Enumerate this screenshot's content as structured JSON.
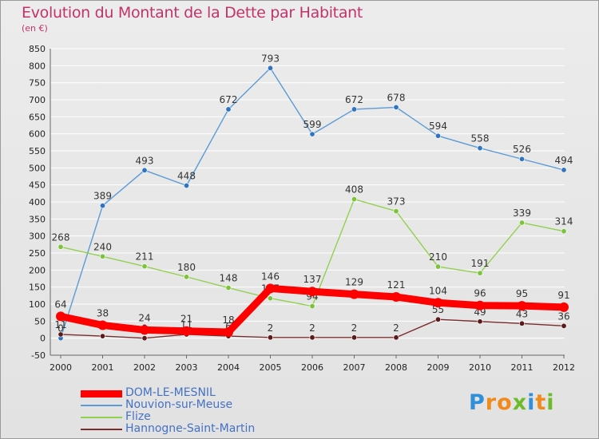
{
  "title": "Evolution du Montant de la Dette par Habitant",
  "unit": "(en €)",
  "brand": {
    "text": "Proxiti",
    "letters": [
      {
        "ch": "P",
        "color": "#2f8fd8"
      },
      {
        "ch": "r",
        "color": "#f08a1c"
      },
      {
        "ch": "o",
        "color": "#f08a1c"
      },
      {
        "ch": "x",
        "color": "#6cbb2a"
      },
      {
        "ch": "i",
        "color": "#2f8fd8"
      },
      {
        "ch": "t",
        "color": "#f08a1c"
      },
      {
        "ch": "i",
        "color": "#6cbb2a"
      }
    ]
  },
  "chart_data": {
    "type": "line",
    "title": "Evolution du Montant de la Dette par Habitant",
    "xlabel": "",
    "ylabel": "(en €)",
    "ylim": [
      -50,
      850
    ],
    "yticks": [
      -50,
      0,
      50,
      100,
      150,
      200,
      250,
      300,
      350,
      400,
      450,
      500,
      550,
      600,
      650,
      700,
      750,
      800,
      850
    ],
    "x": [
      "2000",
      "2001",
      "2002",
      "2003",
      "2004",
      "2005",
      "2006",
      "2007",
      "2008",
      "2009",
      "2010",
      "2011",
      "2012"
    ],
    "grid": "horizontal",
    "legend": "bottom-left",
    "series": [
      {
        "name": "Nouvion-sur-Meuse",
        "color": "#5b9bd5",
        "marker": "#2f74c0",
        "values": [
          0,
          389,
          493,
          448,
          672,
          793,
          599,
          672,
          678,
          594,
          558,
          526,
          494
        ],
        "labels": [
          "0",
          "389",
          "493",
          "448",
          "672",
          "793",
          "599",
          "672",
          "678",
          "594",
          "558",
          "526",
          "494"
        ]
      },
      {
        "name": "Flize",
        "color": "#92d050",
        "marker": "#7cc23a",
        "values": [
          268,
          240,
          211,
          180,
          148,
          117,
          94,
          408,
          373,
          210,
          191,
          339,
          314
        ],
        "labels": [
          "268",
          "240",
          "211",
          "180",
          "148",
          "117",
          "94",
          "408",
          "373",
          "210",
          "191",
          "339",
          "314"
        ]
      },
      {
        "name": "Hannogne-Saint-Martin",
        "color": "#7b2c2c",
        "marker": "#5a1a1a",
        "values": [
          11,
          6,
          0,
          11,
          6,
          2,
          2,
          2,
          2,
          55,
          49,
          43,
          36
        ],
        "labels": [
          "11",
          "6",
          "0",
          "11",
          "6",
          "2",
          "2",
          "2",
          "2",
          "55",
          "49",
          "43",
          "36"
        ]
      },
      {
        "name": "DOM-LE-MESNIL",
        "color": "#ff0000",
        "marker": "#ff0000",
        "values": [
          64,
          38,
          24,
          21,
          18,
          146,
          137,
          129,
          121,
          104,
          96,
          95,
          91
        ],
        "labels": [
          "64",
          "38",
          "24",
          "21",
          "18",
          "146",
          "137",
          "129",
          "121",
          "104",
          "96",
          "95",
          "91"
        ]
      }
    ]
  }
}
